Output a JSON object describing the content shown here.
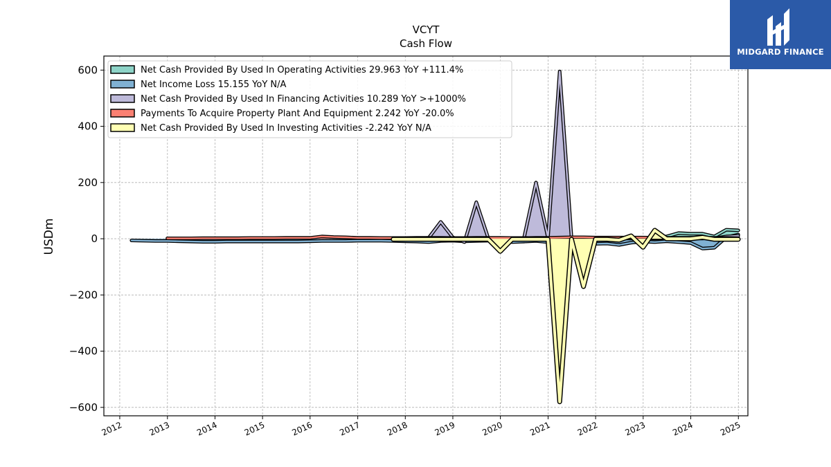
{
  "brand": {
    "name": "MIDGARD FINANCE"
  },
  "chart_data": {
    "type": "area",
    "title": "VCYT",
    "subtitle": "Cash Flow",
    "ylabel": "USDm",
    "xlabel": "",
    "xlim": [
      "2011-09-01",
      "2025-03-15"
    ],
    "ylim": [
      -630,
      650
    ],
    "yticks": [
      -600,
      -400,
      -200,
      0,
      200,
      400,
      600
    ],
    "yticklabels": [
      "−600",
      "−400",
      "−200",
      "0",
      "200",
      "400",
      "600"
    ],
    "xticks": [
      "2012-01-01",
      "2013-01-01",
      "2014-01-01",
      "2015-01-01",
      "2016-01-01",
      "2017-01-01",
      "2018-01-01",
      "2019-01-01",
      "2020-01-01",
      "2021-01-01",
      "2022-01-01",
      "2023-01-01",
      "2024-01-01",
      "2025-01-01"
    ],
    "xticklabels": [
      "2012",
      "2013",
      "2014",
      "2015",
      "2016",
      "2017",
      "2018",
      "2019",
      "2020",
      "2021",
      "2022",
      "2023",
      "2024",
      "2025"
    ],
    "grid": true,
    "legend_position": "upper-left",
    "series": [
      {
        "name": "Net Cash Provided By Used In Operating Activities",
        "legend": "Net Cash Provided By Used In Operating Activities  29.963 YoY +111.4%",
        "color": "#8dd3c7",
        "x": [
          "2017-09-30",
          "2017-12-31",
          "2018-03-31",
          "2018-06-30",
          "2018-09-30",
          "2018-12-31",
          "2019-03-31",
          "2019-06-30",
          "2019-09-30",
          "2019-12-31",
          "2020-03-31",
          "2020-06-30",
          "2020-09-30",
          "2020-12-31",
          "2021-03-31",
          "2021-06-30",
          "2021-09-30",
          "2021-12-31",
          "2022-03-31",
          "2022-06-30",
          "2022-09-30",
          "2022-12-31",
          "2023-03-31",
          "2023-06-30",
          "2023-09-30",
          "2023-12-31",
          "2024-03-31",
          "2024-06-30",
          "2024-09-30",
          "2024-12-31"
        ],
        "values": [
          -5,
          -6,
          -7,
          -8,
          -4,
          -5,
          -6,
          -6,
          -5,
          -8,
          -9,
          -10,
          -6,
          -12,
          -15,
          -8,
          -10,
          -9,
          -10,
          -9,
          -5,
          -3,
          4,
          8,
          20,
          18,
          18,
          8,
          32,
          30
        ]
      },
      {
        "name": "Net Income Loss",
        "legend": "Net Income Loss  15.155 YoY N/A",
        "color": "#80b1d3",
        "x": [
          "2012-03-31",
          "2012-06-30",
          "2012-09-30",
          "2012-12-31",
          "2013-03-31",
          "2013-06-30",
          "2013-09-30",
          "2013-12-31",
          "2014-03-31",
          "2014-06-30",
          "2014-09-30",
          "2014-12-31",
          "2015-03-31",
          "2015-06-30",
          "2015-09-30",
          "2015-12-31",
          "2016-03-31",
          "2016-06-30",
          "2016-09-30",
          "2016-12-31",
          "2017-03-31",
          "2017-06-30",
          "2017-09-30",
          "2017-12-31",
          "2018-03-31",
          "2018-06-30",
          "2018-09-30",
          "2018-12-31",
          "2019-03-31",
          "2019-06-30",
          "2019-09-30",
          "2019-12-31",
          "2020-03-31",
          "2020-06-30",
          "2020-09-30",
          "2020-12-31",
          "2021-03-31",
          "2021-06-30",
          "2021-09-30",
          "2021-12-31",
          "2022-03-31",
          "2022-06-30",
          "2022-09-30",
          "2022-12-31",
          "2023-03-31",
          "2023-06-30",
          "2023-09-30",
          "2023-12-31",
          "2024-03-31",
          "2024-06-30",
          "2024-09-30",
          "2024-12-31"
        ],
        "values": [
          -6,
          -7,
          -8,
          -8,
          -9,
          -10,
          -11,
          -11,
          -10,
          -10,
          -10,
          -10,
          -10,
          -10,
          -10,
          -9,
          -8,
          -8,
          -8,
          -7,
          -7,
          -7,
          -8,
          -9,
          -10,
          -12,
          -8,
          -7,
          -9,
          -8,
          -7,
          -6,
          -12,
          -10,
          -8,
          -12,
          -28,
          -42,
          -20,
          -18,
          -17,
          -22,
          -14,
          -10,
          -12,
          -9,
          -12,
          -15,
          -35,
          -32,
          5,
          15
        ]
      },
      {
        "name": "Net Cash Provided By Used In Financing Activities",
        "legend": "Net Cash Provided By Used In Financing Activities  10.289 YoY >+1000%",
        "color": "#bebada",
        "x": [
          "2017-09-30",
          "2017-12-31",
          "2018-03-31",
          "2018-06-30",
          "2018-09-30",
          "2018-12-31",
          "2019-03-31",
          "2019-06-30",
          "2019-09-30",
          "2019-12-31",
          "2020-03-31",
          "2020-06-30",
          "2020-09-30",
          "2020-12-31",
          "2021-03-31",
          "2021-06-30",
          "2021-09-30",
          "2021-12-31",
          "2022-03-31",
          "2022-06-30",
          "2022-09-30",
          "2022-12-31",
          "2023-03-31",
          "2023-06-30",
          "2023-09-30",
          "2023-12-31",
          "2024-03-31",
          "2024-06-30",
          "2024-09-30",
          "2024-12-31"
        ],
        "values": [
          2,
          1,
          1,
          3,
          60,
          5,
          -12,
          130,
          2,
          1,
          1,
          2,
          200,
          3,
          595,
          3,
          1,
          2,
          2,
          1,
          1,
          1,
          1,
          1,
          1,
          1,
          1,
          2,
          8,
          10
        ]
      },
      {
        "name": "Payments To Acquire Property Plant And Equipment",
        "legend": "Payments To Acquire Property Plant And Equipment  2.242 YoY -20.0%",
        "color": "#fb8072",
        "x": [
          "2012-12-31",
          "2013-03-31",
          "2013-06-30",
          "2013-09-30",
          "2013-12-31",
          "2014-03-31",
          "2014-06-30",
          "2014-09-30",
          "2014-12-31",
          "2015-03-31",
          "2015-06-30",
          "2015-09-30",
          "2015-12-31",
          "2016-03-31",
          "2016-06-30",
          "2016-09-30",
          "2016-12-31",
          "2017-03-31",
          "2017-06-30",
          "2017-09-30",
          "2017-12-31",
          "2018-03-31",
          "2018-06-30",
          "2018-09-30",
          "2018-12-31",
          "2019-03-31",
          "2019-06-30",
          "2019-09-30",
          "2019-12-31",
          "2020-03-31",
          "2020-06-30",
          "2020-09-30",
          "2020-12-31",
          "2021-03-31",
          "2021-06-30",
          "2021-09-30",
          "2021-12-31",
          "2022-03-31",
          "2022-06-30",
          "2022-09-30",
          "2022-12-31",
          "2023-03-31",
          "2023-06-30",
          "2023-09-30",
          "2023-12-31",
          "2024-03-31",
          "2024-06-30",
          "2024-09-30",
          "2024-12-31"
        ],
        "values": [
          1.5,
          1.5,
          1.5,
          1.8,
          2,
          2,
          2,
          2.5,
          2.5,
          2.5,
          3,
          3,
          3,
          8,
          6,
          5,
          3,
          3,
          2.5,
          2.5,
          2.5,
          3,
          3,
          3,
          2.5,
          2.5,
          3,
          3,
          3,
          2.5,
          2.5,
          3,
          3,
          4,
          5,
          5,
          4,
          4,
          4,
          4,
          4,
          3.5,
          3,
          3,
          3,
          3,
          3,
          2.8,
          2.2
        ]
      },
      {
        "name": "Net Cash Provided By Used In Investing Activities",
        "legend": "Net Cash Provided By Used In Investing Activities  -2.242 YoY N/A",
        "color": "#ffffb3",
        "x": [
          "2017-09-30",
          "2017-12-31",
          "2018-03-31",
          "2018-06-30",
          "2018-09-30",
          "2018-12-31",
          "2019-03-31",
          "2019-06-30",
          "2019-09-30",
          "2019-12-31",
          "2020-03-31",
          "2020-06-30",
          "2020-09-30",
          "2020-12-31",
          "2021-03-31",
          "2021-06-30",
          "2021-09-30",
          "2021-12-31",
          "2022-03-31",
          "2022-06-30",
          "2022-09-30",
          "2022-12-31",
          "2023-03-31",
          "2023-06-30",
          "2023-09-30",
          "2023-12-31",
          "2024-03-31",
          "2024-06-30",
          "2024-09-30",
          "2024-12-31"
        ],
        "values": [
          -2,
          -2,
          -2,
          -2,
          -2,
          -2,
          -2,
          -2,
          -2,
          -45,
          -2,
          -2,
          -2,
          -2,
          -580,
          -2,
          -170,
          -2,
          -2,
          -5,
          10,
          -30,
          30,
          0,
          0,
          0,
          5,
          -2,
          -2,
          -2
        ]
      }
    ]
  }
}
